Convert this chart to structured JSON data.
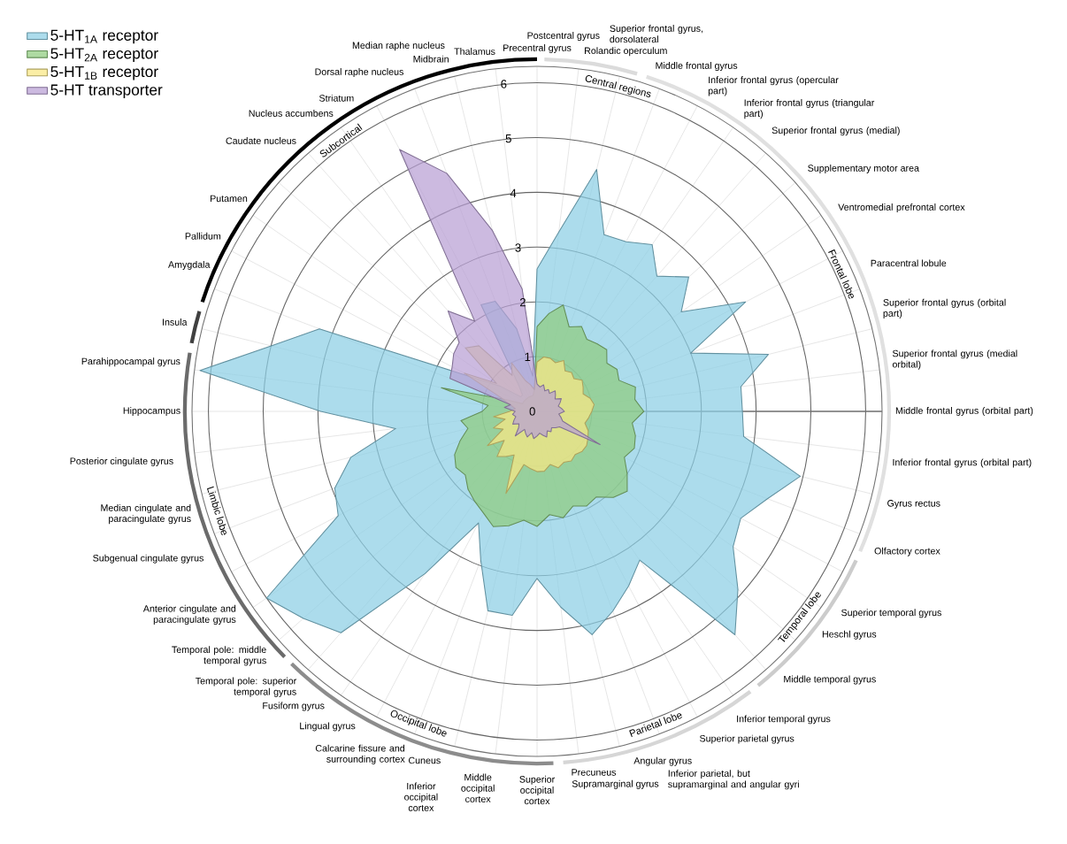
{
  "chart_data": {
    "type": "radar",
    "categories": [
      "Precentral gyrus",
      "Postcentral gyrus",
      "Rolandic operculum",
      "Superior frontal gyrus, dorsolateral",
      "Middle frontal gyrus",
      "Inferior frontal gyrus (opercular part)",
      "Inferior frontal gyrus (triangular part)",
      "Superior frontal gyrus (medial)",
      "Supplementary motor area",
      "Ventromedial prefrontal cortex",
      "Paracentral lobule",
      "Superior frontal gyrus (orbital part)",
      "Superior frontal gyrus (medial orbital)",
      "Middle frontal gyrus (orbital part)",
      "Inferior frontal gyrus (orbital part)",
      "Gyrus rectus",
      "Olfactory cortex",
      "Superior temporal gyrus",
      "Heschl gyrus",
      "Middle temporal gyrus",
      "Inferior temporal gyrus",
      "Superior parietal gyrus",
      "Inferior parietal, but supramarginal and angular gyri",
      "Angular gyrus",
      "Supramarginal gyrus",
      "Precuneus",
      "Superior occipital cortex",
      "Middle occipital cortex",
      "Inferior occipital cortex",
      "Cuneus",
      "Calcarine fissure and surrounding cortex",
      "Lingual gyrus",
      "Fusiform gyrus",
      "Temporal pole: superior temporal gyrus",
      "Temporal pole: middle temporal gyrus",
      "Anterior cingulate and paracingulate gyrus",
      "Subgenual cingulate gyrus",
      "Median cingulate and paracingulate gyrus",
      "Posterior cingulate gyrus",
      "Hippocampus",
      "Parahippocampal gyrus",
      "Insula",
      "Amygdala",
      "Pallidum",
      "Putamen",
      "Caudate nucleus",
      "Nucleus accumbens",
      "Striatum",
      "Dorsal raphe nucleus",
      "Median raphe nucleus",
      "Midbrain",
      "Thalamus"
    ],
    "series": [
      {
        "name": "5-HT$_{1A}$ receptor",
        "color": "#8ccfe4",
        "values": [
          2.6,
          3.3,
          4.55,
          3.45,
          3.5,
          3.7,
          3.3,
          3.7,
          3.2,
          4.3,
          3.0,
          4.35,
          3.75,
          3.75,
          3.8,
          4.95,
          4.5,
          4.2,
          4.35,
          4.9,
          5.45,
          3.3,
          3.6,
          3.9,
          4.2,
          3.6,
          3.05,
          3.75,
          3.75,
          2.9,
          2.3,
          3.6,
          5.4,
          5.7,
          6.0,
          4.1,
          3.95,
          3.5,
          2.6,
          3.95,
          6.2,
          5.0,
          4.25,
          1.35,
          0.8,
          0.4,
          0.4,
          0.6,
          2.2,
          2.15,
          1.55,
          0.65
        ]
      },
      {
        "name": "5-HT$_{2A}$ receptor",
        "color": "#8fcc7e",
        "values": [
          1.55,
          1.8,
          2.0,
          1.65,
          1.75,
          1.6,
          1.65,
          1.7,
          1.55,
          1.65,
          1.6,
          1.85,
          1.8,
          1.95,
          1.75,
          1.85,
          1.9,
          1.8,
          2.0,
          2.2,
          2.1,
          1.9,
          1.95,
          1.85,
          2.0,
          1.9,
          2.1,
          2.0,
          2.15,
          2.25,
          2.1,
          2.0,
          1.9,
          1.75,
          1.8,
          1.7,
          1.5,
          1.3,
          1.4,
          1.0,
          0.9,
          1.8,
          0.6,
          0.3,
          0.3,
          0.3,
          0.3,
          0.3,
          0.3,
          0.3,
          0.3,
          0.4
        ]
      },
      {
        "name": "5-HT$_{1B}$ receptor",
        "color": "#f9e784",
        "values": [
          0.9,
          1.0,
          1.0,
          0.95,
          1.05,
          0.9,
          0.95,
          0.9,
          1.0,
          0.95,
          0.9,
          1.0,
          1.05,
          1.0,
          0.95,
          0.9,
          1.0,
          1.05,
          1.1,
          1.1,
          1.05,
          1.1,
          1.05,
          1.1,
          1.0,
          1.1,
          1.1,
          1.05,
          1.0,
          1.6,
          0.9,
          1.0,
          1.1,
          0.8,
          1.1,
          0.7,
          0.85,
          0.6,
          0.8,
          0.5,
          0.4,
          0.5,
          0.7,
          1.5,
          0.9,
          1.75,
          1.6,
          0.8,
          1.0,
          0.6,
          0.5,
          0.4
        ]
      },
      {
        "name": "5-HT transporter",
        "color": "#b99fd4",
        "values": [
          0.5,
          0.45,
          0.5,
          0.4,
          0.45,
          0.4,
          0.5,
          0.45,
          0.4,
          0.5,
          0.45,
          0.4,
          0.45,
          0.5,
          0.4,
          0.45,
          0.5,
          1.3,
          0.5,
          0.45,
          0.4,
          0.45,
          0.4,
          0.5,
          0.45,
          0.4,
          0.45,
          0.5,
          0.4,
          0.5,
          0.45,
          0.4,
          0.6,
          0.45,
          0.4,
          0.5,
          0.45,
          0.4,
          0.45,
          0.4,
          0.6,
          0.5,
          1.7,
          1.75,
          1.85,
          1.9,
          2.45,
          2.0,
          5.4,
          4.65,
          3.4,
          2.25
        ]
      }
    ],
    "ylim": [
      0,
      6.3
    ],
    "yticks": [
      0,
      1,
      2,
      3,
      4,
      5,
      6
    ],
    "grid": true,
    "legend": "top left",
    "annotations": [
      "Central regions",
      "Frontal lobe",
      "Temporal lobe",
      "Parietal lobe",
      "Occipital lobe",
      "Limbic lobe",
      "Subcortical"
    ]
  }
}
